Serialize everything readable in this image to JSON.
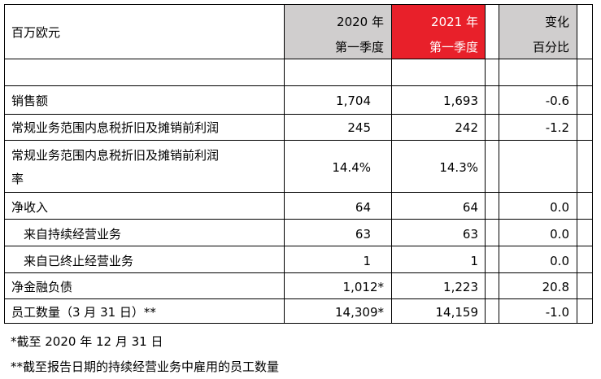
{
  "header": {
    "unit_label": "百万欧元",
    "col_2020": [
      "2020 年",
      "第一季度"
    ],
    "col_2021": [
      "2021 年",
      "第一季度"
    ],
    "col_change": [
      "变化",
      "百分比"
    ]
  },
  "colors": {
    "grey_header": "#d0cece",
    "red_header": "#e8202a"
  },
  "rows": [
    {
      "label": "销售额",
      "v2020": "1,704",
      "v2021": "1,693",
      "change": "-0.6"
    },
    {
      "label": "常规业务范围内息税折旧及摊销前利润",
      "v2020": "245",
      "v2021": "242",
      "change": "-1.2"
    },
    {
      "label": [
        "常规业务范围内息税折旧及摊销前利润",
        "率"
      ],
      "v2020": "14.4%",
      "v2021": "14.3%",
      "change": ""
    },
    {
      "label": "净收入",
      "v2020": "64",
      "v2021": "64",
      "change": "0.0"
    },
    {
      "label": "来自持续经营业务",
      "v2020": "63",
      "v2021": "63",
      "change": "0.0"
    },
    {
      "label": "来自已终止经营业务",
      "v2020": "1",
      "v2021": "1",
      "change": "0.0"
    },
    {
      "label": "净金融负债",
      "v2020": "1,012*",
      "v2021": "1,223",
      "change": "20.8"
    },
    {
      "label": "员工数量（3 月 31 日）**",
      "v2020": "14,309*",
      "v2021": "14,159",
      "change": "-1.0"
    }
  ],
  "footnotes": [
    "*截至 2020 年 12 月 31 日",
    "**截至报告日期的持续经营业务中雇用的员工数量"
  ]
}
